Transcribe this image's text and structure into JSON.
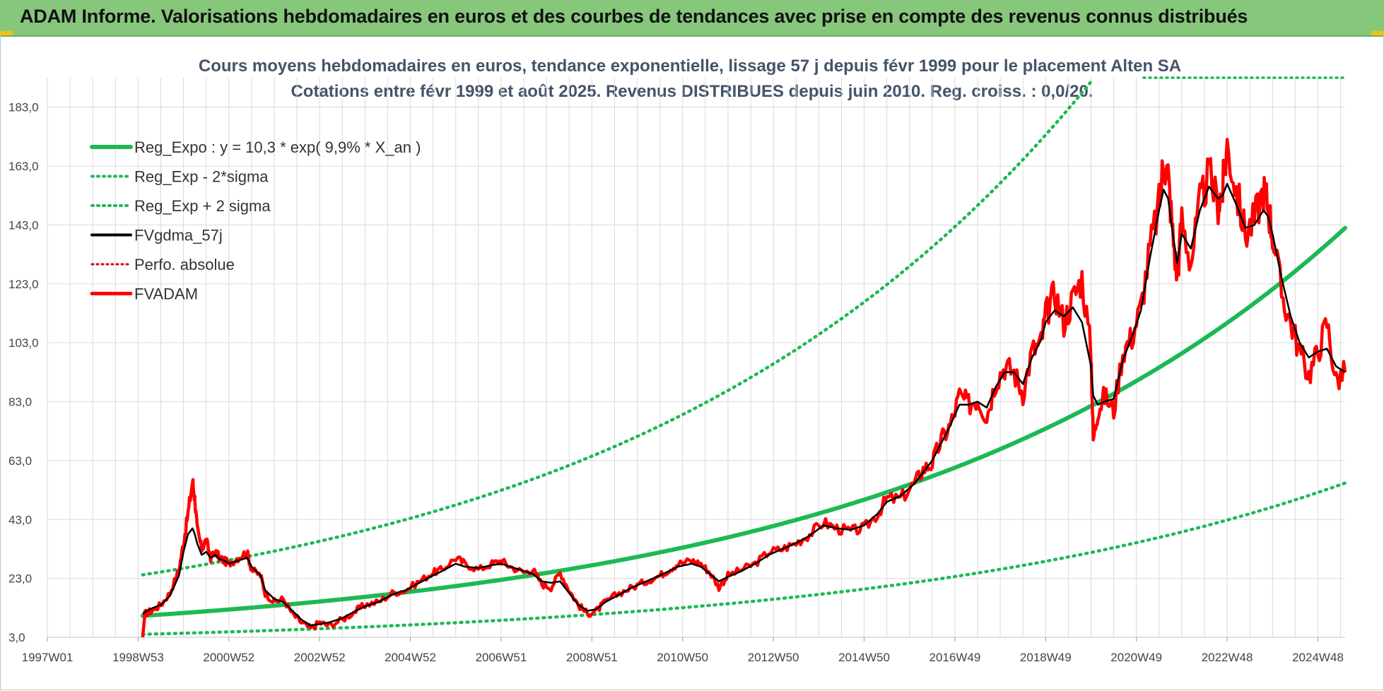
{
  "banner": {
    "title": "ADAM Informe. Valorisations hebdomadaires en euros et des courbes de tendances avec prise en compte des revenus connus distribués"
  },
  "colors": {
    "banner_bg": "#86c77c",
    "trend_green": "#1db954",
    "smooth_black": "#000000",
    "fvadam_red": "#ff0000",
    "perfo_red": "#e00000",
    "grid": "#d9d9d9"
  },
  "chart_data": {
    "type": "line",
    "title": "Cours moyens hebdomadaires en euros, tendance exponentielle, lissage 57 j depuis févr 1999 pour le placement Alten SA",
    "subtitle": "Cotations entre févr 1999 et août 2025. Revenus DISTRIBUES depuis juin 2010. Reg. croiss. : 0,0/20.",
    "xlabel": "",
    "ylabel": "",
    "ylim": [
      3,
      193
    ],
    "xlim": [
      1997.0,
      2025.6
    ],
    "grid": true,
    "legend_position": "top-left",
    "y_ticks": [
      "183,0",
      "163,0",
      "143,0",
      "123,0",
      "103,0",
      "83,0",
      "63,0",
      "43,0",
      "23,0",
      "3,0"
    ],
    "y_tick_values": [
      183,
      163,
      143,
      123,
      103,
      83,
      63,
      43,
      23,
      3
    ],
    "x_ticks": [
      "1997W01",
      "1998W53",
      "2000W52",
      "2002W52",
      "2004W52",
      "2006W51",
      "2008W51",
      "2010W50",
      "2012W50",
      "2014W50",
      "2016W49",
      "2018W49",
      "2020W49",
      "2022W48",
      "2024W48"
    ],
    "x_tick_values": [
      1997.0,
      1999.0,
      2001.0,
      2003.0,
      2005.0,
      2007.0,
      2009.0,
      2011.0,
      2013.0,
      2015.0,
      2017.0,
      2019.0,
      2021.0,
      2023.0,
      2025.0
    ],
    "regression": {
      "a": 10.3,
      "rate": 0.099,
      "x0": 1999.1,
      "sigma_up_factor": 2.35,
      "sigma_down_factor": 0.39
    },
    "series": [
      {
        "name": "Reg_Expo : y = 10,3 * exp( 9,9% *  X_an )",
        "style": "solid-green"
      },
      {
        "name": "Reg_Exp - 2*sigma",
        "style": "dotted-green"
      },
      {
        "name": "Reg_Exp + 2 sigma",
        "style": "dotted-green"
      },
      {
        "name": "FVgdma_57j",
        "style": "solid-black"
      },
      {
        "name": "Perfo. absolue",
        "style": "dotted-red"
      },
      {
        "name": "FVADAM",
        "style": "solid-red",
        "x": [
          1999.1,
          1999.15,
          1999.3,
          1999.5,
          1999.7,
          1999.9,
          2000.0,
          2000.1,
          2000.2,
          2000.25,
          2000.3,
          2000.4,
          2000.5,
          2000.6,
          2000.7,
          2000.8,
          2000.9,
          2001.0,
          2001.2,
          2001.4,
          2001.5,
          2001.7,
          2001.8,
          2002.0,
          2002.2,
          2002.4,
          2002.6,
          2002.8,
          2003.0,
          2003.2,
          2003.5,
          2003.8,
          2004.0,
          2004.3,
          2004.6,
          2004.9,
          2005.2,
          2005.5,
          2005.7,
          2006.0,
          2006.2,
          2006.5,
          2006.8,
          2007.0,
          2007.2,
          2007.5,
          2007.7,
          2007.9,
          2008.1,
          2008.3,
          2008.5,
          2008.7,
          2008.9,
          2009.1,
          2009.3,
          2009.6,
          2009.9,
          2010.2,
          2010.5,
          2010.7,
          2010.9,
          2011.2,
          2011.4,
          2011.6,
          2011.8,
          2012.0,
          2012.3,
          2012.6,
          2012.9,
          2013.2,
          2013.5,
          2013.8,
          2014.1,
          2014.4,
          2014.7,
          2015.0,
          2015.3,
          2015.5,
          2015.8,
          2016.1,
          2016.3,
          2016.5,
          2016.7,
          2016.9,
          2017.1,
          2017.3,
          2017.5,
          2017.7,
          2017.9,
          2018.1,
          2018.3,
          2018.5,
          2018.7,
          2018.9,
          2019.0,
          2019.2,
          2019.4,
          2019.6,
          2019.8,
          2020.0,
          2020.05,
          2020.15,
          2020.3,
          2020.5,
          2020.7,
          2020.9,
          2021.1,
          2021.3,
          2021.5,
          2021.6,
          2021.7,
          2021.8,
          2021.9,
          2022.0,
          2022.2,
          2022.4,
          2022.6,
          2022.8,
          2022.9,
          2023.0,
          2023.2,
          2023.4,
          2023.6,
          2023.8,
          2023.9,
          2024.0,
          2024.2,
          2024.4,
          2024.6,
          2024.8,
          2025.0,
          2025.2,
          2025.4,
          2025.6
        ],
        "values": [
          3,
          11,
          12,
          14,
          18,
          26,
          35,
          45,
          56,
          50,
          40,
          33,
          36,
          30,
          32,
          30,
          29,
          28,
          30,
          32,
          26,
          24,
          18,
          15,
          16,
          11,
          8,
          6,
          8,
          7,
          9,
          12,
          14,
          15,
          18,
          19,
          22,
          25,
          26,
          30,
          28,
          26,
          28,
          29,
          27,
          25,
          26,
          21,
          20,
          25,
          19,
          14,
          11,
          12,
          15,
          18,
          20,
          22,
          24,
          26,
          28,
          29,
          28,
          25,
          20,
          24,
          26,
          28,
          32,
          33,
          35,
          38,
          42,
          40,
          39,
          40,
          45,
          50,
          50,
          55,
          60,
          62,
          70,
          75,
          85,
          82,
          84,
          78,
          90,
          95,
          93,
          86,
          100,
          103,
          112,
          120,
          110,
          118,
          125,
          100,
          70,
          80,
          85,
          80,
          100,
          105,
          115,
          135,
          150,
          165,
          160,
          140,
          125,
          145,
          130,
          150,
          160,
          150,
          155,
          170,
          155,
          140,
          145,
          155,
          150,
          140,
          120,
          110,
          100,
          92,
          100,
          110,
          90,
          93
        ]
      }
    ],
    "smooth_values": [
      11,
      11.5,
      12.8,
      14,
      17,
      24,
      32,
      38,
      40,
      38,
      35,
      31,
      32,
      30,
      31,
      29.5,
      29,
      28,
      29,
      30,
      27,
      24,
      19,
      16,
      15,
      12,
      9,
      7,
      7.5,
      8,
      9.5,
      12,
      13.5,
      15,
      17.5,
      19,
      21.5,
      24,
      25.5,
      28,
      27,
      26.5,
      27.5,
      28,
      27,
      25.5,
      24.5,
      22,
      21.5,
      22,
      18,
      14,
      12,
      12.5,
      15,
      17.5,
      20,
      22,
      24,
      25.5,
      27,
      28,
      27,
      24.5,
      22,
      23.5,
      25.5,
      28,
      31,
      33,
      35,
      37.5,
      41,
      40,
      39.5,
      41,
      45,
      49,
      51,
      55,
      59,
      63,
      69,
      75,
      82,
      82,
      83,
      81,
      88,
      93,
      93,
      89,
      98,
      104,
      110,
      114,
      112,
      115,
      110,
      95,
      85,
      82,
      83,
      84,
      97,
      105,
      114,
      132,
      148,
      155,
      152,
      140,
      130,
      140,
      135,
      148,
      156,
      152,
      153,
      157,
      150,
      142,
      143,
      148,
      146,
      140,
      125,
      112,
      103,
      98,
      100,
      101,
      95,
      93
    ]
  }
}
